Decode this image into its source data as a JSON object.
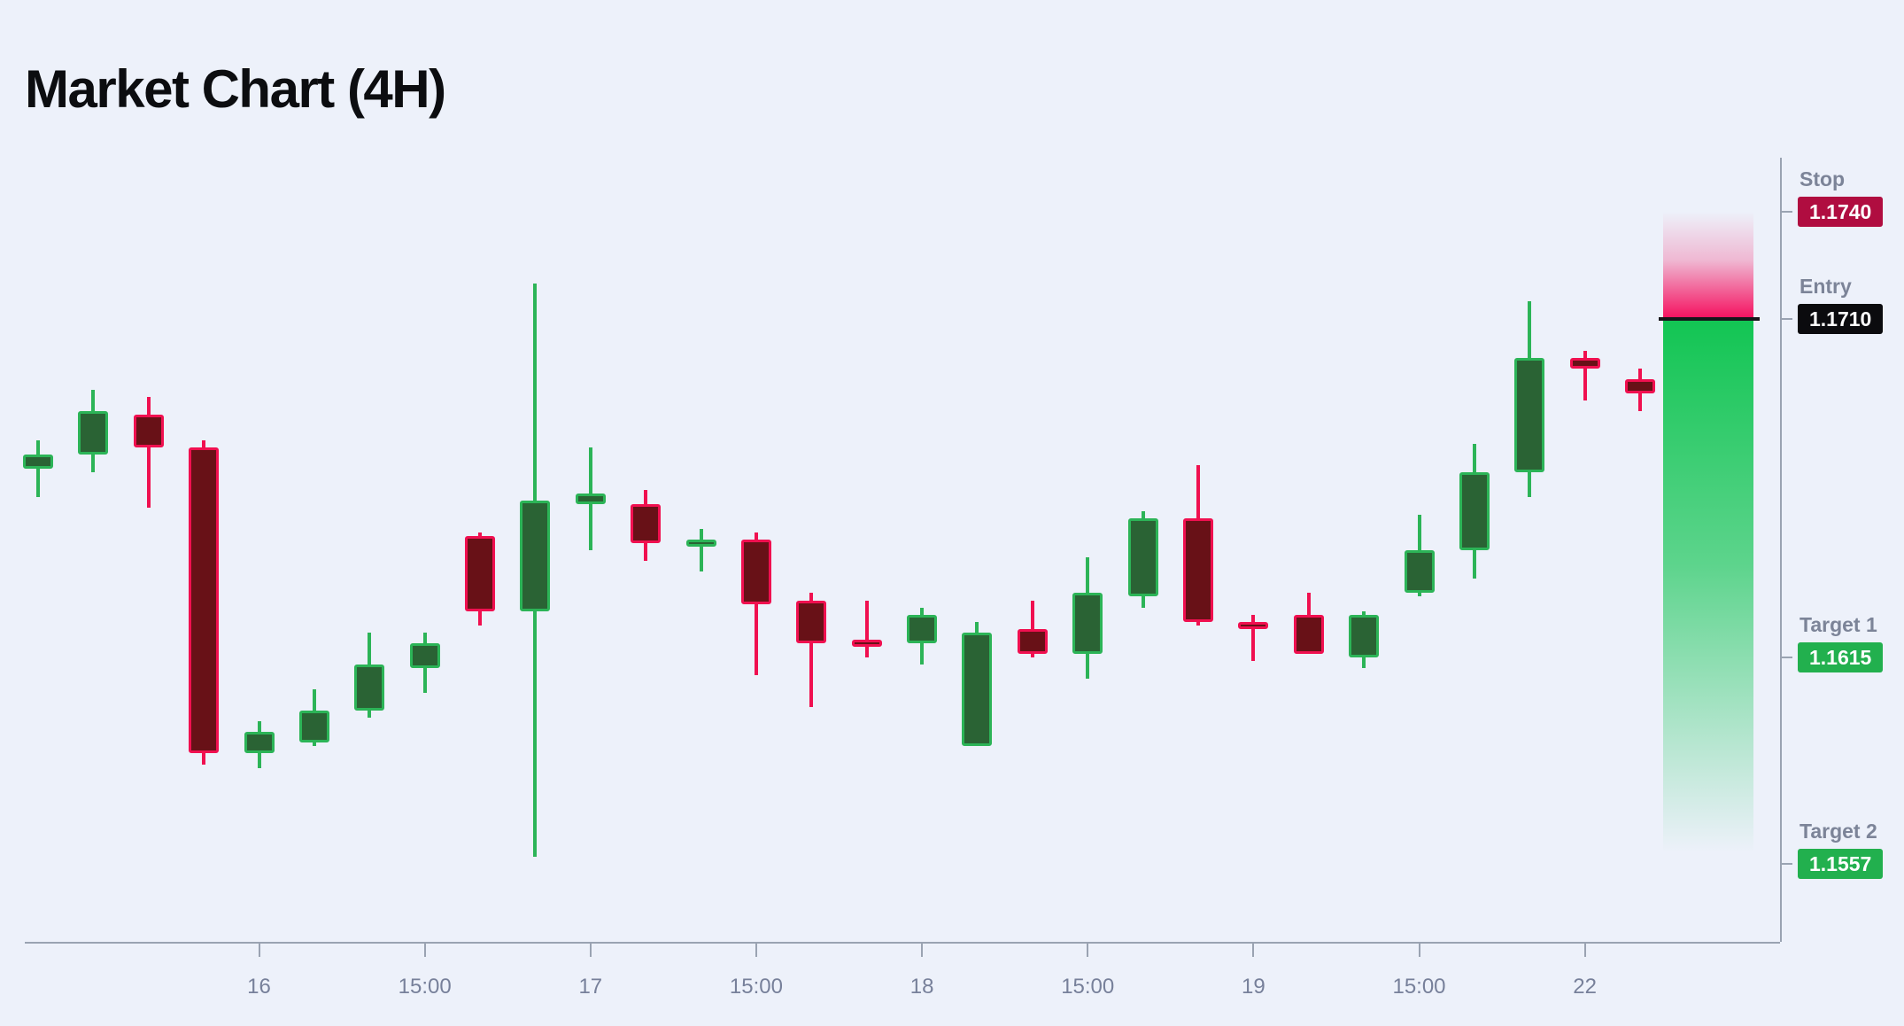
{
  "title": "Market Chart (4H)",
  "colors": {
    "background": "#edf1fa",
    "title_text": "#0c0d10",
    "axis_line": "#9aa3b2",
    "tick_label_text": "#77809a",
    "level_label_text": "#7c8498",
    "badge_text": "#ffffff",
    "up_border": "#2cb457",
    "up_fill": "#2a6334",
    "down_border": "#f01050",
    "down_fill": "#681117",
    "stop_badge": "#b00d40",
    "entry_badge": "#0b0b0e",
    "target_badge": "#22b04e",
    "entry_line": "#16161a",
    "zone_risk": "#f50f5e",
    "zone_reward": "#12c553"
  },
  "levels": [
    {
      "id": "stop",
      "label": "Stop",
      "value": "1.1740",
      "price": 1.174,
      "badge_color": "#b00d40"
    },
    {
      "id": "entry",
      "label": "Entry",
      "value": "1.1710",
      "price": 1.171,
      "badge_color": "#0b0b0e"
    },
    {
      "id": "target1",
      "label": "Target 1",
      "value": "1.1615",
      "price": 1.1615,
      "badge_color": "#22b04e"
    },
    {
      "id": "target2",
      "label": "Target 2",
      "value": "1.1557",
      "price": 1.1557,
      "badge_color": "#22b04e"
    }
  ],
  "chart_data": {
    "type": "candlestick",
    "title": "Market Chart (4H)",
    "timeframe": "4H",
    "ylim": [
      1.1535,
      1.1755
    ],
    "grid": false,
    "x_ticks": [
      {
        "index": 4,
        "label": "16"
      },
      {
        "index": 7,
        "label": "15:00"
      },
      {
        "index": 10,
        "label": "17"
      },
      {
        "index": 13,
        "label": "15:00"
      },
      {
        "index": 16,
        "label": "18"
      },
      {
        "index": 19,
        "label": "15:00"
      },
      {
        "index": 22,
        "label": "19"
      },
      {
        "index": 25,
        "label": "15:00"
      },
      {
        "index": 28,
        "label": "22"
      }
    ],
    "candles": [
      {
        "o": 1.1668,
        "h": 1.1676,
        "l": 1.166,
        "c": 1.1672
      },
      {
        "o": 1.1672,
        "h": 1.169,
        "l": 1.1667,
        "c": 1.1684
      },
      {
        "o": 1.1683,
        "h": 1.1688,
        "l": 1.1657,
        "c": 1.1674
      },
      {
        "o": 1.1674,
        "h": 1.1676,
        "l": 1.1585,
        "c": 1.1588
      },
      {
        "o": 1.1588,
        "h": 1.1597,
        "l": 1.1584,
        "c": 1.1594
      },
      {
        "o": 1.1591,
        "h": 1.1606,
        "l": 1.159,
        "c": 1.16
      },
      {
        "o": 1.16,
        "h": 1.1622,
        "l": 1.1598,
        "c": 1.1613
      },
      {
        "o": 1.1612,
        "h": 1.1622,
        "l": 1.1605,
        "c": 1.1619
      },
      {
        "o": 1.1649,
        "h": 1.165,
        "l": 1.1624,
        "c": 1.1628
      },
      {
        "o": 1.1628,
        "h": 1.172,
        "l": 1.1559,
        "c": 1.1659
      },
      {
        "o": 1.1658,
        "h": 1.1674,
        "l": 1.1645,
        "c": 1.1661
      },
      {
        "o": 1.1658,
        "h": 1.1662,
        "l": 1.1642,
        "c": 1.1647
      },
      {
        "o": 1.1647,
        "h": 1.1651,
        "l": 1.1639,
        "c": 1.1648
      },
      {
        "o": 1.1648,
        "h": 1.165,
        "l": 1.161,
        "c": 1.163
      },
      {
        "o": 1.1631,
        "h": 1.1633,
        "l": 1.1601,
        "c": 1.1619
      },
      {
        "o": 1.162,
        "h": 1.1631,
        "l": 1.1615,
        "c": 1.1619
      },
      {
        "o": 1.1619,
        "h": 1.1629,
        "l": 1.1613,
        "c": 1.1627
      },
      {
        "o": 1.159,
        "h": 1.1625,
        "l": 1.159,
        "c": 1.1622
      },
      {
        "o": 1.1623,
        "h": 1.1631,
        "l": 1.1615,
        "c": 1.1616
      },
      {
        "o": 1.1616,
        "h": 1.1643,
        "l": 1.1609,
        "c": 1.1633
      },
      {
        "o": 1.1632,
        "h": 1.1656,
        "l": 1.1629,
        "c": 1.1654
      },
      {
        "o": 1.1654,
        "h": 1.1669,
        "l": 1.1624,
        "c": 1.1625
      },
      {
        "o": 1.1625,
        "h": 1.1627,
        "l": 1.1614,
        "c": 1.1623
      },
      {
        "o": 1.1627,
        "h": 1.1633,
        "l": 1.1616,
        "c": 1.1616
      },
      {
        "o": 1.1615,
        "h": 1.1628,
        "l": 1.1612,
        "c": 1.1627
      },
      {
        "o": 1.1633,
        "h": 1.1655,
        "l": 1.1632,
        "c": 1.1645
      },
      {
        "o": 1.1645,
        "h": 1.1675,
        "l": 1.1637,
        "c": 1.1667
      },
      {
        "o": 1.1667,
        "h": 1.1715,
        "l": 1.166,
        "c": 1.1699
      },
      {
        "o": 1.1699,
        "h": 1.1701,
        "l": 1.1687,
        "c": 1.1696
      },
      {
        "o": 1.1693,
        "h": 1.1696,
        "l": 1.1684,
        "c": 1.1689
      }
    ],
    "annotations": {
      "stop": 1.174,
      "entry": 1.171,
      "target1": 1.1615,
      "target2": 1.1557,
      "risk_zone": [
        1.171,
        1.174
      ],
      "reward_zone": [
        1.1557,
        1.171
      ]
    }
  }
}
